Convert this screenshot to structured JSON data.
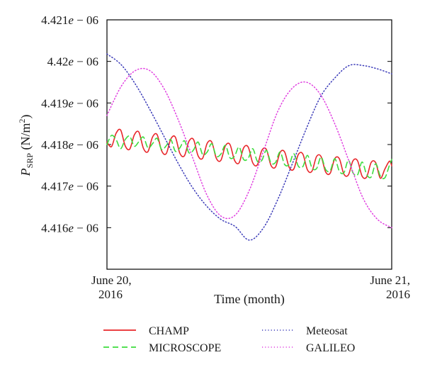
{
  "chart_data": {
    "type": "line",
    "xlabel": "Time (month)",
    "ylabel_main": "P",
    "ylabel_sub": "SRP",
    "ylabel_unit": " (N/m",
    "ylabel_exp": "2",
    "ylabel_close": ")",
    "x_tick_labels": [
      {
        "line1": "June 20,",
        "line2": "2016"
      },
      {
        "line1": "June 21,",
        "line2": "2016"
      }
    ],
    "y_ticks": [
      {
        "value": 4.421e-06,
        "label": "4.421e − 06"
      },
      {
        "value": 4.42e-06,
        "label": "4.42e − 06"
      },
      {
        "value": 4.419e-06,
        "label": "4.419e − 06"
      },
      {
        "value": 4.418e-06,
        "label": "4.418e − 06"
      },
      {
        "value": 4.417e-06,
        "label": "4.417e − 06"
      },
      {
        "value": 4.416e-06,
        "label": "4.416e − 06"
      }
    ],
    "xlim": [
      0,
      1
    ],
    "ylim": [
      4.415e-06,
      4.421e-06
    ],
    "legend_placement": "bottom",
    "series": [
      {
        "name": "CHAMP",
        "color": "#e8262a",
        "style": "solid",
        "x": [
          0.0,
          0.016,
          0.032,
          0.048,
          0.064,
          0.08,
          0.096,
          0.112,
          0.128,
          0.144,
          0.16,
          0.176,
          0.192,
          0.208,
          0.224,
          0.24,
          0.256,
          0.272,
          0.288,
          0.304,
          0.32,
          0.336,
          0.352,
          0.368,
          0.384,
          0.4,
          0.416,
          0.432,
          0.448,
          0.464,
          0.48,
          0.496,
          0.512,
          0.528,
          0.544,
          0.56,
          0.576,
          0.592,
          0.608,
          0.624,
          0.64,
          0.656,
          0.672,
          0.688,
          0.704,
          0.72,
          0.736,
          0.752,
          0.768,
          0.784,
          0.8,
          0.816,
          0.832,
          0.848,
          0.864,
          0.88,
          0.896,
          0.912,
          0.928,
          0.944,
          0.96,
          0.976,
          0.992,
          1.0
        ],
        "y": [
          4.41806e-06,
          4.41795e-06,
          4.41827e-06,
          4.41835e-06,
          4.41797e-06,
          4.41789e-06,
          4.41823e-06,
          4.4183e-06,
          4.41791e-06,
          4.41783e-06,
          4.41818e-06,
          4.41824e-06,
          4.41785e-06,
          4.41778e-06,
          4.41813e-06,
          4.41818e-06,
          4.41779e-06,
          4.41773e-06,
          4.41808e-06,
          4.41812e-06,
          4.41773e-06,
          4.41767e-06,
          4.41803e-06,
          4.41806e-06,
          4.41767e-06,
          4.41762e-06,
          4.41797e-06,
          4.418e-06,
          4.41762e-06,
          4.41756e-06,
          4.41792e-06,
          4.41794e-06,
          4.41756e-06,
          4.41751e-06,
          4.41786e-06,
          4.41788e-06,
          4.4175e-06,
          4.41746e-06,
          4.41781e-06,
          4.41782e-06,
          4.41745e-06,
          4.41741e-06,
          4.41776e-06,
          4.41777e-06,
          4.41739e-06,
          4.41736e-06,
          4.41771e-06,
          4.41771e-06,
          4.41734e-06,
          4.41731e-06,
          4.41766e-06,
          4.41766e-06,
          4.41729e-06,
          4.41727e-06,
          4.41761e-06,
          4.41761e-06,
          4.41724e-06,
          4.41722e-06,
          4.41757e-06,
          4.41756e-06,
          4.41719e-06,
          4.41741e-06,
          4.4176e-06,
          4.41749e-06
        ]
      },
      {
        "name": "MICROSCOPE",
        "color": "#3ddc3d",
        "style": "dashed",
        "x": [
          0.0,
          0.016,
          0.032,
          0.048,
          0.064,
          0.08,
          0.096,
          0.112,
          0.128,
          0.144,
          0.16,
          0.176,
          0.192,
          0.208,
          0.224,
          0.24,
          0.256,
          0.272,
          0.288,
          0.304,
          0.32,
          0.336,
          0.352,
          0.368,
          0.384,
          0.4,
          0.416,
          0.432,
          0.448,
          0.464,
          0.48,
          0.496,
          0.512,
          0.528,
          0.544,
          0.56,
          0.576,
          0.592,
          0.608,
          0.624,
          0.64,
          0.656,
          0.672,
          0.688,
          0.704,
          0.72,
          0.736,
          0.752,
          0.768,
          0.784,
          0.8,
          0.816,
          0.832,
          0.848,
          0.864,
          0.88,
          0.896,
          0.912,
          0.928,
          0.944,
          0.96,
          0.976,
          0.992,
          1.0
        ],
        "y": [
          4.418e-06,
          4.41822e-06,
          4.41812e-06,
          4.4179e-06,
          4.41812e-06,
          4.4182e-06,
          4.41796e-06,
          4.41807e-06,
          4.41818e-06,
          4.41792e-06,
          4.41802e-06,
          4.41815e-06,
          4.41788e-06,
          4.41797e-06,
          4.41812e-06,
          4.41784e-06,
          4.41792e-06,
          4.41809e-06,
          4.4178e-06,
          4.41787e-06,
          4.41806e-06,
          4.41776e-06,
          4.41782e-06,
          4.41802e-06,
          4.41772e-06,
          4.41777e-06,
          4.41798e-06,
          4.41768e-06,
          4.41772e-06,
          4.41794e-06,
          4.41764e-06,
          4.41767e-06,
          4.4179e-06,
          4.4176e-06,
          4.41762e-06,
          4.41786e-06,
          4.41756e-06,
          4.41757e-06,
          4.41782e-06,
          4.41752e-06,
          4.41752e-06,
          4.41778e-06,
          4.41748e-06,
          4.41747e-06,
          4.41774e-06,
          4.41744e-06,
          4.41742e-06,
          4.4177e-06,
          4.4174e-06,
          4.41737e-06,
          4.41766e-06,
          4.41736e-06,
          4.41732e-06,
          4.41762e-06,
          4.41732e-06,
          4.41727e-06,
          4.41758e-06,
          4.41728e-06,
          4.41722e-06,
          4.41754e-06,
          4.41724e-06,
          4.4172e-06,
          4.4175e-06,
          4.41764e-06
        ]
      },
      {
        "name": "Meteosat",
        "color": "#3a3ab8",
        "style": "dotted",
        "x": [
          0.0,
          0.05,
          0.1,
          0.15,
          0.2,
          0.25,
          0.3,
          0.35,
          0.4,
          0.45,
          0.5,
          0.55,
          0.6,
          0.65,
          0.7,
          0.75,
          0.8,
          0.85,
          0.9,
          0.95,
          1.0
        ],
        "y": [
          4.42018e-06,
          4.41992e-06,
          4.41945e-06,
          4.41885e-06,
          4.4182e-06,
          4.41755e-06,
          4.41697e-06,
          4.41652e-06,
          4.4162e-06,
          4.41603e-06,
          4.4157e-06,
          4.416e-06,
          4.41668e-06,
          4.41752e-06,
          4.41838e-06,
          4.41915e-06,
          4.4196e-06,
          4.4199e-06,
          4.4199e-06,
          4.41982e-06,
          4.4197e-06
        ]
      },
      {
        "name": "GALILEO",
        "color": "#e03ee0",
        "style": "dotted",
        "x": [
          0.0,
          0.05,
          0.1,
          0.15,
          0.2,
          0.25,
          0.3,
          0.35,
          0.4,
          0.45,
          0.5,
          0.55,
          0.6,
          0.65,
          0.7,
          0.75,
          0.8,
          0.85,
          0.9,
          0.95,
          1.0
        ],
        "y": [
          4.4187e-06,
          4.4194e-06,
          4.41978e-06,
          4.41978e-06,
          4.41935e-06,
          4.4186e-06,
          4.4177e-06,
          4.4168e-06,
          4.41628e-06,
          4.4163e-06,
          4.4169e-06,
          4.41785e-06,
          4.4188e-06,
          4.41935e-06,
          4.4195e-06,
          4.4192e-06,
          4.4185e-06,
          4.4176e-06,
          4.4167e-06,
          4.4162e-06,
          4.416e-06
        ]
      }
    ]
  }
}
